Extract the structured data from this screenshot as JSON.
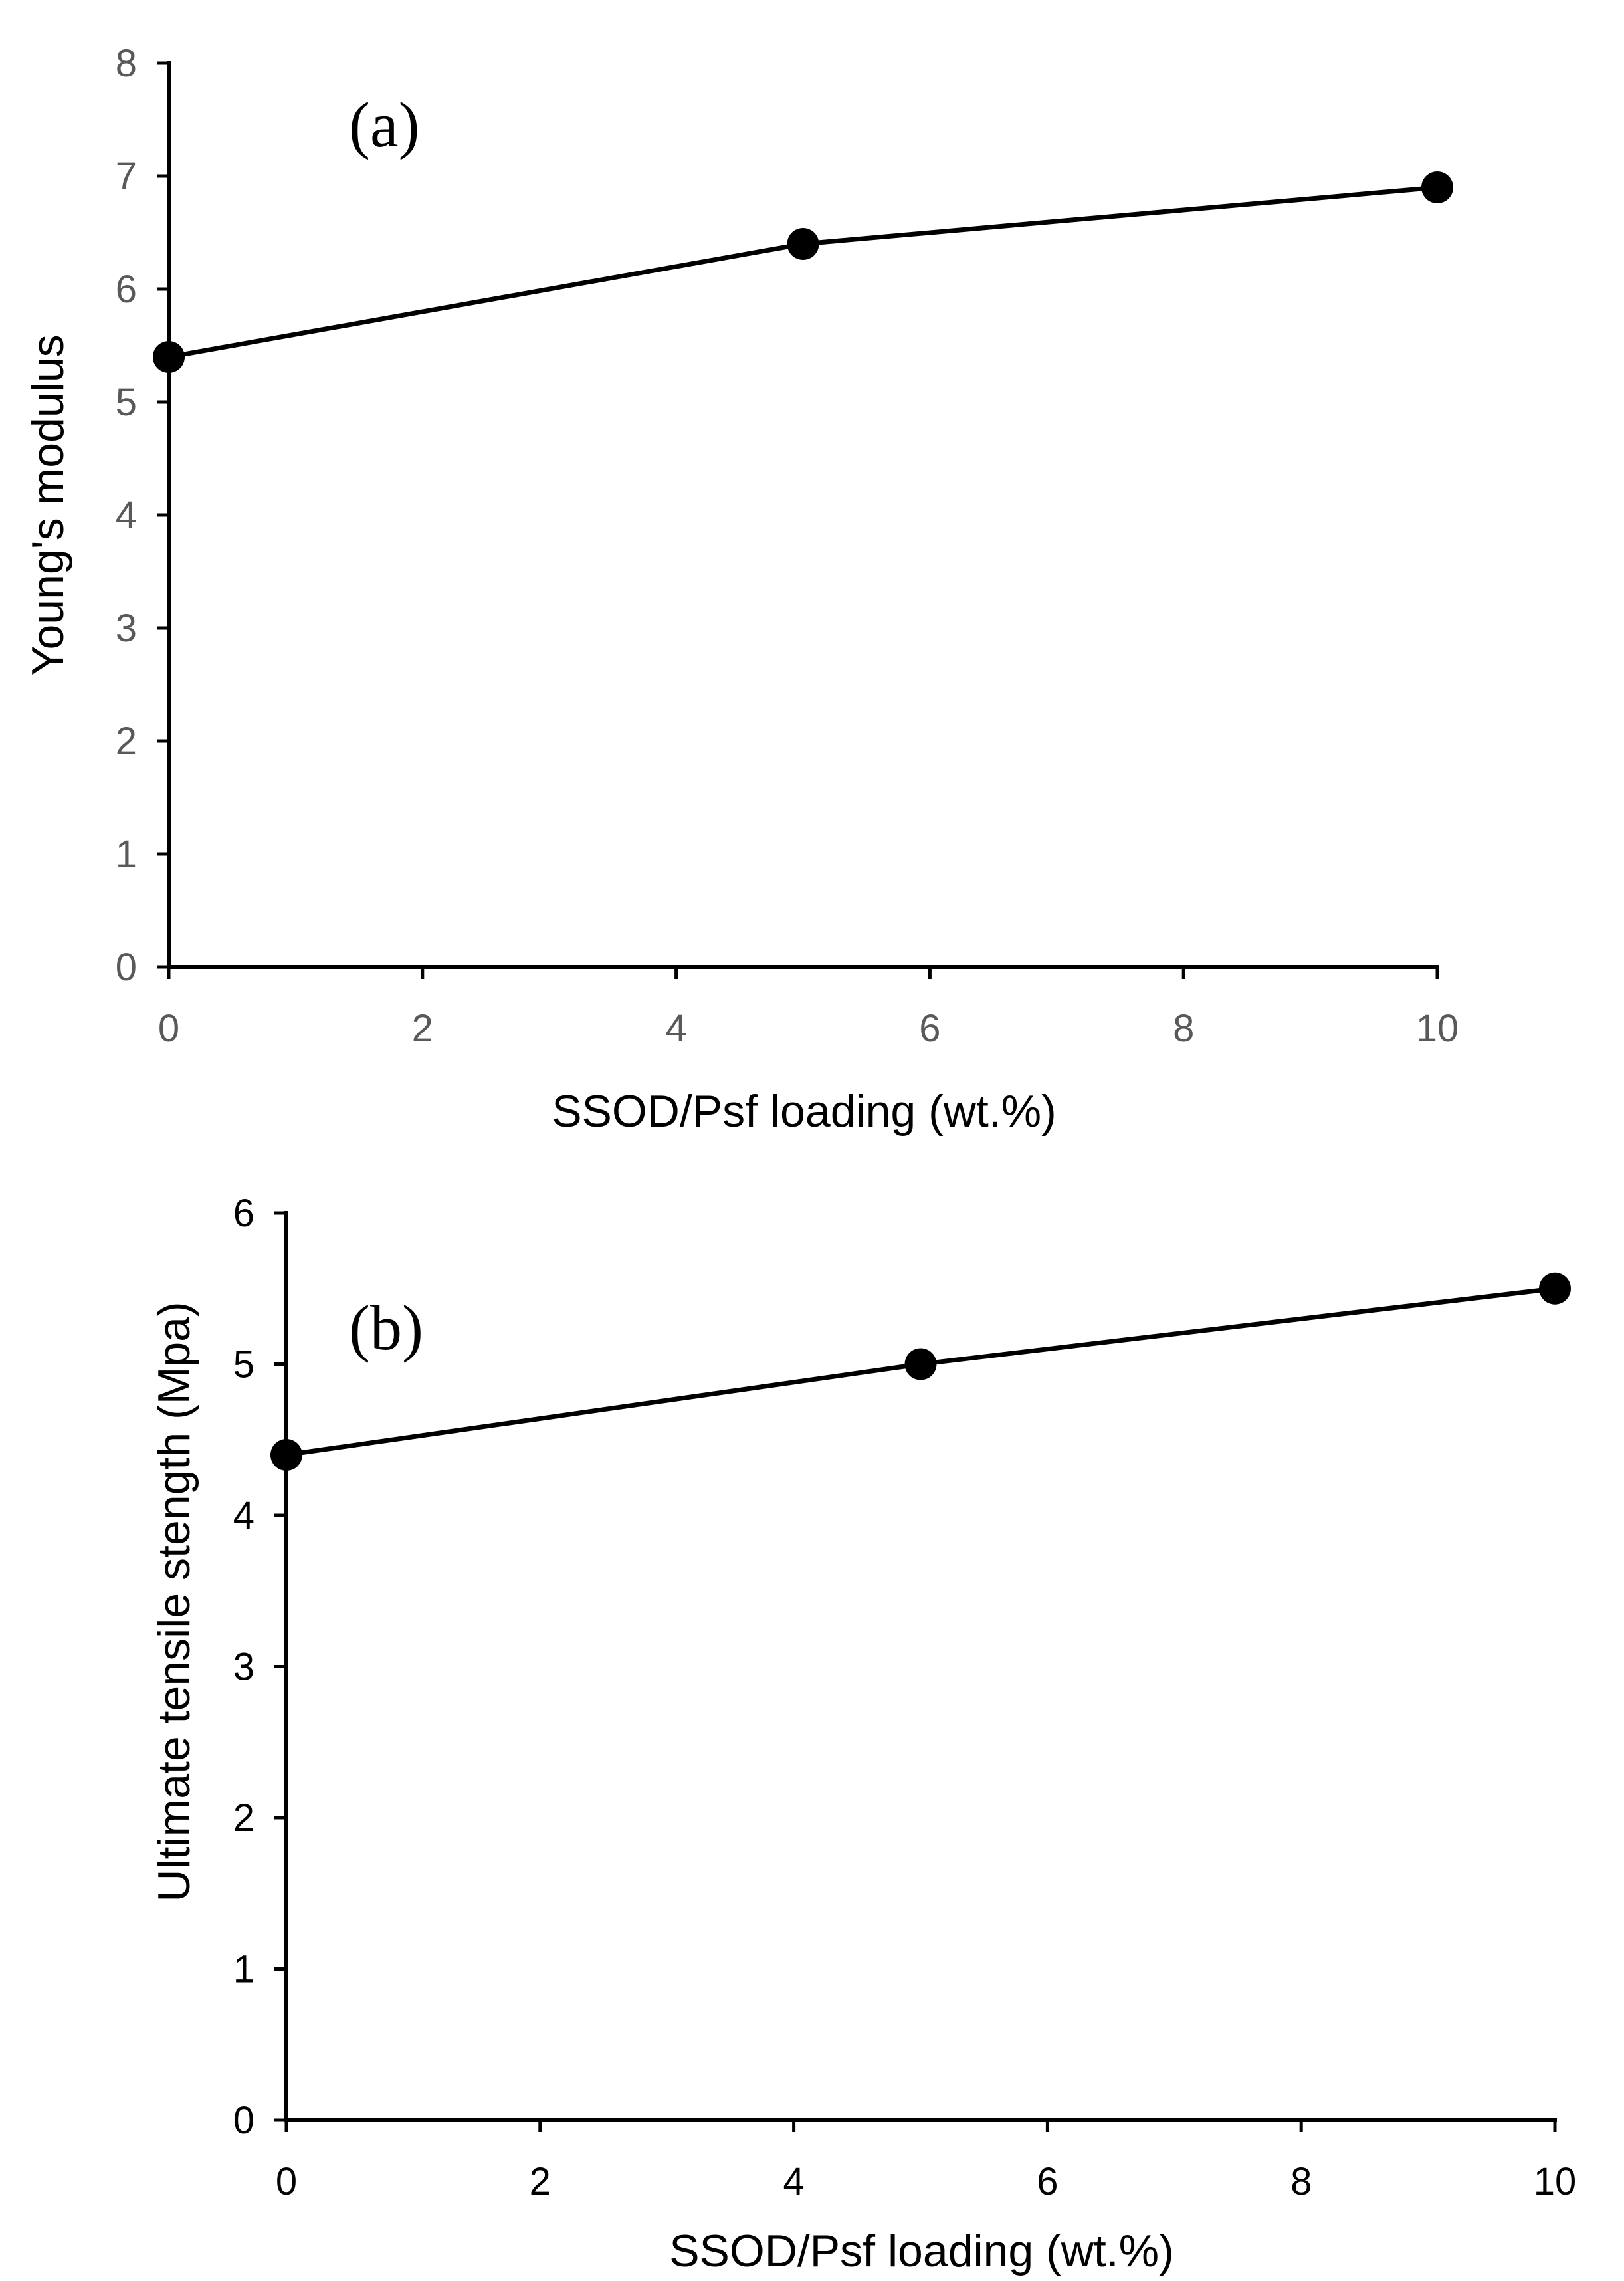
{
  "chart_data": [
    {
      "type": "line",
      "panel_label": "(a)",
      "title": "",
      "xlabel": "SSOD/Psf loading (wt.%)",
      "ylabel": "Young's modulus",
      "x": [
        0,
        5,
        10
      ],
      "series": [
        {
          "name": "Young's modulus",
          "values": [
            5.4,
            6.4,
            6.9
          ]
        }
      ],
      "xlim": [
        0,
        10
      ],
      "ylim": [
        0,
        8
      ],
      "xticks": [
        0,
        2,
        4,
        6,
        8,
        10
      ],
      "yticks": [
        0,
        1,
        2,
        3,
        4,
        5,
        6,
        7,
        8
      ],
      "xtick_labels": [
        "0",
        "2",
        "4",
        "6",
        "8",
        "10"
      ],
      "ytick_labels": [
        "0",
        "1",
        "2",
        "3",
        "4",
        "5",
        "6",
        "7",
        "8"
      ],
      "grid": false,
      "legend": "none",
      "tick_color": "#595959"
    },
    {
      "type": "line",
      "panel_label": "(b)",
      "title": "",
      "xlabel": "SSOD/Psf loading (wt.%)",
      "ylabel": "Ultimate tensile stength (Mpa)",
      "x": [
        0,
        5,
        10
      ],
      "series": [
        {
          "name": "Ultimate tensile stength",
          "values": [
            4.4,
            5.0,
            5.5
          ]
        }
      ],
      "xlim": [
        0,
        10
      ],
      "ylim": [
        0,
        6
      ],
      "xticks": [
        0,
        2,
        4,
        6,
        8,
        10
      ],
      "yticks": [
        0,
        1,
        2,
        3,
        4,
        5,
        6
      ],
      "xtick_labels": [
        "0",
        "2",
        "4",
        "6",
        "8",
        "10"
      ],
      "ytick_labels": [
        "0",
        "1",
        "2",
        "3",
        "4",
        "5",
        "6"
      ],
      "grid": false,
      "legend": "none",
      "tick_color": "#000000"
    }
  ]
}
